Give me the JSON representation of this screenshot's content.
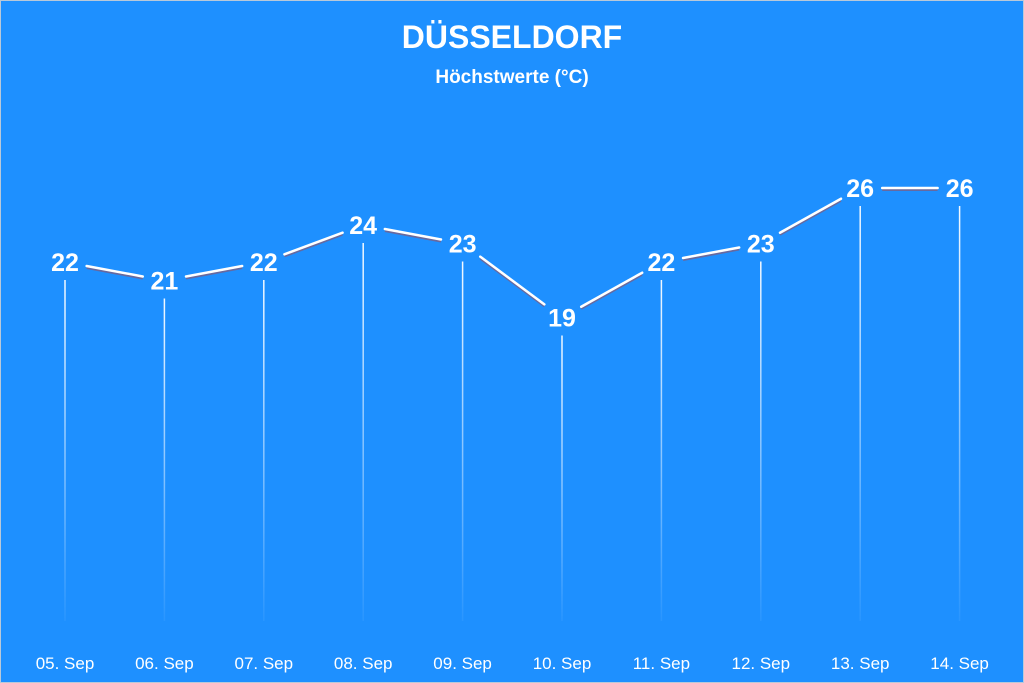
{
  "chart_data": {
    "type": "line",
    "title": "DÜSSELDORF",
    "subtitle": "Höchstwerte (°C)",
    "categories": [
      "05. Sep",
      "06. Sep",
      "07. Sep",
      "08. Sep",
      "09. Sep",
      "10. Sep",
      "11. Sep",
      "12. Sep",
      "13. Sep",
      "14. Sep"
    ],
    "series": [
      {
        "values": [
          22,
          21,
          22,
          24,
          23,
          19,
          22,
          23,
          26,
          26
        ]
      }
    ],
    "xlabel": "",
    "ylabel": "",
    "ylim": [
      0,
      30
    ],
    "grid": false,
    "legend": "none",
    "data_labels": true,
    "drop_lines": true
  },
  "colors": {
    "background": "#1e90ff",
    "line": "#ffffff",
    "text": "#ffffff",
    "line_shadow": "#c0392b"
  }
}
